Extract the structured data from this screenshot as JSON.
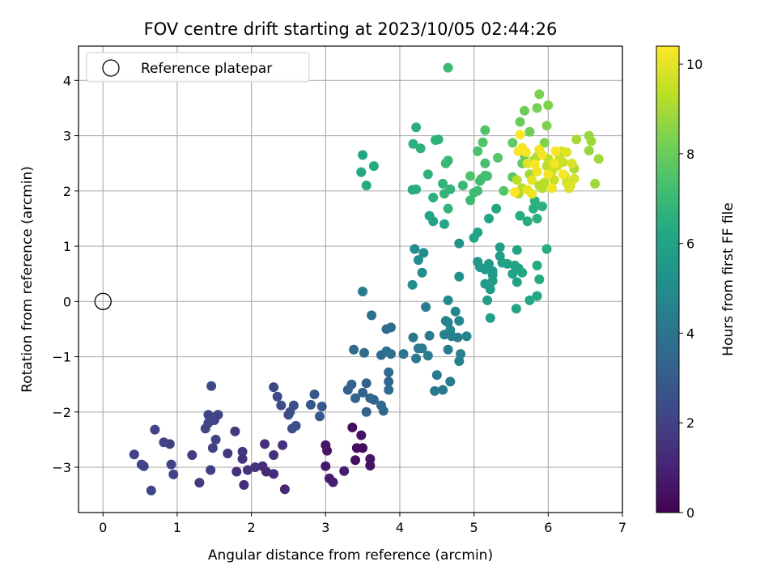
{
  "chart_data": {
    "type": "scatter",
    "title": "FOV centre drift starting at 2023/10/05 02:44:26",
    "xlabel": "Angular distance from reference (arcmin)",
    "ylabel": "Rotation from reference (arcmin)",
    "xlim": [
      -0.33,
      7.0
    ],
    "ylim": [
      -3.82,
      4.62
    ],
    "xticks": [
      0,
      1,
      2,
      3,
      4,
      5,
      6,
      7
    ],
    "yticks": [
      -3,
      -2,
      -1,
      0,
      1,
      2,
      3,
      4
    ],
    "grid": true,
    "legend": {
      "placement": "top-left",
      "entries": [
        "Reference platepar"
      ]
    },
    "reference_point": {
      "x": 0,
      "y": 0,
      "label": "Reference platepar"
    },
    "colorbar": {
      "label": "Hours from first FF file",
      "colormap": "viridis",
      "range": [
        0,
        10.4
      ],
      "ticks": [
        0,
        2,
        4,
        6,
        8,
        10
      ]
    },
    "points": [
      [
        3.36,
        -2.28,
        0.3
      ],
      [
        3.42,
        -2.65,
        0.4
      ],
      [
        3.48,
        -2.42,
        0.5
      ],
      [
        3.5,
        -2.65,
        0.3
      ],
      [
        3.6,
        -2.85,
        0.6
      ],
      [
        3.6,
        -2.97,
        0.5
      ],
      [
        3.4,
        -2.87,
        0.4
      ],
      [
        3.0,
        -2.6,
        0.6
      ],
      [
        3.02,
        -2.7,
        0.6
      ],
      [
        3.0,
        -2.98,
        0.7
      ],
      [
        3.05,
        -3.2,
        0.8
      ],
      [
        3.1,
        -3.27,
        0.9
      ],
      [
        3.25,
        -3.07,
        0.8
      ],
      [
        2.45,
        -3.4,
        1.2
      ],
      [
        2.3,
        -3.12,
        1.3
      ],
      [
        2.2,
        -3.08,
        1.2
      ],
      [
        2.15,
        -2.98,
        1.3
      ],
      [
        2.05,
        -3.0,
        1.5
      ],
      [
        1.95,
        -3.05,
        1.4
      ],
      [
        1.8,
        -3.08,
        1.4
      ],
      [
        1.9,
        -3.32,
        1.3
      ],
      [
        2.18,
        -2.58,
        1.4
      ],
      [
        2.3,
        -2.78,
        1.4
      ],
      [
        2.42,
        -2.6,
        1.5
      ],
      [
        1.88,
        -2.72,
        1.6
      ],
      [
        1.88,
        -2.85,
        1.5
      ],
      [
        1.78,
        -2.35,
        1.7
      ],
      [
        1.68,
        -2.75,
        1.6
      ],
      [
        1.45,
        -3.05,
        1.9
      ],
      [
        1.3,
        -3.28,
        1.8
      ],
      [
        1.2,
        -2.78,
        1.8
      ],
      [
        1.48,
        -2.65,
        2.0
      ],
      [
        1.52,
        -2.5,
        2.0
      ],
      [
        1.38,
        -2.3,
        2.1
      ],
      [
        1.42,
        -2.2,
        2.1
      ],
      [
        1.5,
        -2.15,
        2.0
      ],
      [
        1.55,
        -2.05,
        2.1
      ],
      [
        1.42,
        -2.05,
        2.2
      ],
      [
        1.48,
        -2.1,
        2.1
      ],
      [
        1.46,
        -1.53,
        2.3
      ],
      [
        0.9,
        -2.58,
        1.9
      ],
      [
        0.82,
        -2.55,
        2.0
      ],
      [
        0.7,
        -2.32,
        2.0
      ],
      [
        0.92,
        -2.95,
        2.0
      ],
      [
        0.95,
        -3.13,
        2.1
      ],
      [
        0.42,
        -2.77,
        2.0
      ],
      [
        0.52,
        -2.95,
        2.1
      ],
      [
        0.55,
        -2.98,
        2.1
      ],
      [
        0.65,
        -3.42,
        2.2
      ],
      [
        2.3,
        -1.55,
        2.3
      ],
      [
        2.35,
        -1.72,
        2.3
      ],
      [
        2.4,
        -1.88,
        2.4
      ],
      [
        2.5,
        -2.05,
        2.4
      ],
      [
        2.55,
        -2.3,
        2.5
      ],
      [
        2.6,
        -2.25,
        2.5
      ],
      [
        2.57,
        -1.88,
        2.5
      ],
      [
        2.52,
        -2.0,
        2.5
      ],
      [
        2.8,
        -1.87,
        2.8
      ],
      [
        2.85,
        -1.68,
        2.8
      ],
      [
        2.92,
        -2.08,
        2.9
      ],
      [
        2.95,
        -1.9,
        2.9
      ],
      [
        3.3,
        -1.6,
        3.2
      ],
      [
        3.35,
        -1.5,
        3.2
      ],
      [
        3.4,
        -1.75,
        3.3
      ],
      [
        3.5,
        -1.65,
        3.3
      ],
      [
        3.55,
        -1.48,
        3.3
      ],
      [
        3.55,
        -2.0,
        3.3
      ],
      [
        3.6,
        -1.75,
        3.4
      ],
      [
        3.65,
        -1.78,
        3.4
      ],
      [
        3.75,
        -1.88,
        3.5
      ],
      [
        3.78,
        -1.98,
        3.5
      ],
      [
        3.85,
        -1.6,
        3.6
      ],
      [
        3.85,
        -1.45,
        3.5
      ],
      [
        3.85,
        -1.28,
        3.6
      ],
      [
        3.38,
        -0.87,
        3.6
      ],
      [
        3.52,
        -0.93,
        3.7
      ],
      [
        3.75,
        -0.97,
        3.7
      ],
      [
        3.82,
        -0.5,
        3.6
      ],
      [
        3.88,
        -0.47,
        3.7
      ],
      [
        3.82,
        -0.9,
        3.8
      ],
      [
        3.88,
        -0.95,
        3.8
      ],
      [
        3.62,
        -0.25,
        3.9
      ],
      [
        3.5,
        0.18,
        4.2
      ],
      [
        4.05,
        -0.95,
        4.0
      ],
      [
        4.18,
        -0.65,
        4.2
      ],
      [
        4.25,
        -0.85,
        4.3
      ],
      [
        4.3,
        -0.85,
        4.3
      ],
      [
        4.22,
        -1.03,
        4.2
      ],
      [
        4.38,
        -0.98,
        4.3
      ],
      [
        4.4,
        -0.62,
        4.3
      ],
      [
        4.35,
        -0.1,
        4.3
      ],
      [
        4.5,
        -1.33,
        4.2
      ],
      [
        4.47,
        -1.62,
        4.2
      ],
      [
        4.58,
        -1.6,
        4.2
      ],
      [
        4.68,
        -1.45,
        4.3
      ],
      [
        4.65,
        -0.87,
        4.4
      ],
      [
        4.6,
        -0.6,
        4.5
      ],
      [
        4.7,
        -0.63,
        4.5
      ],
      [
        4.78,
        -0.65,
        4.5
      ],
      [
        4.82,
        -0.95,
        4.6
      ],
      [
        4.9,
        -0.63,
        4.6
      ],
      [
        4.62,
        -0.35,
        4.6
      ],
      [
        4.65,
        -0.38,
        4.6
      ],
      [
        4.68,
        -0.52,
        4.7
      ],
      [
        4.75,
        -0.18,
        4.7
      ],
      [
        4.8,
        -0.35,
        4.7
      ],
      [
        4.8,
        -1.08,
        4.6
      ],
      [
        4.65,
        0.02,
        4.9
      ],
      [
        4.2,
        0.95,
        5.0
      ],
      [
        4.25,
        0.75,
        5.0
      ],
      [
        4.3,
        0.52,
        5.1
      ],
      [
        4.17,
        0.3,
        5.0
      ],
      [
        4.32,
        0.88,
        5.1
      ],
      [
        4.8,
        0.45,
        5.2
      ],
      [
        4.8,
        1.05,
        5.3
      ],
      [
        5.05,
        0.72,
        5.5
      ],
      [
        5.08,
        0.62,
        5.5
      ],
      [
        5.15,
        0.58,
        5.6
      ],
      [
        5.2,
        0.68,
        5.6
      ],
      [
        5.25,
        0.55,
        5.6
      ],
      [
        5.15,
        0.32,
        5.6
      ],
      [
        5.22,
        0.22,
        5.7
      ],
      [
        5.18,
        0.02,
        5.7
      ],
      [
        5.25,
        0.48,
        5.7
      ],
      [
        5.25,
        0.37,
        5.8
      ],
      [
        5.22,
        -0.3,
        5.8
      ],
      [
        5.35,
        0.82,
        5.8
      ],
      [
        5.35,
        0.98,
        5.9
      ],
      [
        5.38,
        0.7,
        5.9
      ],
      [
        5.45,
        0.68,
        6.0
      ],
      [
        5.52,
        0.5,
        6.0
      ],
      [
        5.55,
        0.65,
        6.0
      ],
      [
        5.6,
        0.6,
        6.1
      ],
      [
        5.58,
        0.35,
        6.0
      ],
      [
        5.58,
        0.93,
        6.1
      ],
      [
        5.65,
        0.52,
        6.1
      ],
      [
        5.75,
        0.02,
        6.2
      ],
      [
        5.85,
        0.1,
        6.2
      ],
      [
        5.88,
        0.4,
        6.3
      ],
      [
        5.85,
        0.65,
        6.3
      ],
      [
        5.98,
        0.95,
        6.4
      ],
      [
        5.57,
        -0.13,
        6.1
      ],
      [
        5.0,
        1.15,
        6.0
      ],
      [
        5.05,
        1.25,
        6.0
      ],
      [
        5.2,
        1.5,
        6.1
      ],
      [
        5.3,
        1.68,
        6.2
      ],
      [
        5.62,
        1.55,
        6.4
      ],
      [
        5.72,
        1.45,
        6.4
      ],
      [
        5.8,
        1.68,
        6.5
      ],
      [
        5.85,
        1.5,
        6.6
      ],
      [
        5.92,
        1.72,
        6.6
      ],
      [
        5.82,
        1.82,
        6.6
      ],
      [
        4.6,
        1.4,
        6.1
      ],
      [
        4.45,
        1.45,
        6.0
      ],
      [
        4.4,
        1.55,
        6.0
      ],
      [
        3.48,
        2.34,
        6.2
      ],
      [
        3.5,
        2.65,
        6.2
      ],
      [
        3.55,
        2.1,
        6.3
      ],
      [
        3.65,
        2.45,
        6.4
      ],
      [
        4.17,
        2.02,
        6.5
      ],
      [
        4.22,
        2.03,
        6.5
      ],
      [
        4.18,
        2.85,
        6.6
      ],
      [
        4.22,
        3.15,
        6.6
      ],
      [
        4.28,
        2.77,
        6.6
      ],
      [
        4.38,
        2.3,
        6.7
      ],
      [
        4.45,
        1.88,
        6.6
      ],
      [
        4.48,
        2.92,
        6.7
      ],
      [
        4.52,
        2.93,
        6.7
      ],
      [
        4.58,
        2.13,
        6.8
      ],
      [
        4.6,
        1.95,
        6.8
      ],
      [
        4.65,
        1.68,
        6.8
      ],
      [
        4.68,
        2.03,
        6.8
      ],
      [
        4.62,
        2.5,
        6.9
      ],
      [
        4.65,
        2.55,
        6.9
      ],
      [
        4.65,
        4.23,
        7.0
      ],
      [
        4.85,
        2.1,
        6.9
      ],
      [
        4.95,
        1.83,
        7.0
      ],
      [
        5.0,
        1.97,
        7.1
      ],
      [
        5.05,
        2.0,
        7.2
      ],
      [
        5.08,
        2.18,
        7.1
      ],
      [
        5.1,
        2.22,
        7.2
      ],
      [
        5.15,
        2.28,
        7.3
      ],
      [
        5.15,
        2.5,
        7.3
      ],
      [
        5.18,
        2.27,
        7.3
      ],
      [
        5.05,
        2.72,
        7.4
      ],
      [
        5.12,
        2.88,
        7.5
      ],
      [
        5.15,
        3.1,
        7.5
      ],
      [
        5.32,
        2.6,
        7.6
      ],
      [
        5.4,
        2.0,
        7.6
      ],
      [
        5.52,
        2.25,
        7.7
      ],
      [
        5.52,
        2.87,
        7.8
      ],
      [
        5.65,
        2.5,
        7.9
      ],
      [
        5.68,
        2.65,
        7.9
      ],
      [
        5.62,
        3.25,
        8.0
      ],
      [
        5.68,
        3.45,
        8.1
      ],
      [
        5.75,
        3.07,
        8.1
      ],
      [
        5.85,
        3.5,
        8.2
      ],
      [
        5.88,
        3.75,
        8.3
      ],
      [
        6.0,
        3.55,
        8.4
      ],
      [
        5.98,
        3.18,
        8.4
      ],
      [
        5.95,
        2.87,
        8.4
      ],
      [
        4.95,
        2.27,
        7.5
      ],
      [
        6.55,
        3.0,
        8.8
      ],
      [
        6.58,
        2.9,
        8.9
      ],
      [
        6.55,
        2.73,
        8.8
      ],
      [
        6.63,
        2.13,
        8.9
      ],
      [
        6.68,
        2.58,
        8.9
      ],
      [
        6.38,
        2.93,
        9.0
      ],
      [
        6.35,
        2.4,
        9.1
      ],
      [
        5.75,
        2.3,
        8.9
      ],
      [
        5.8,
        2.55,
        9.1
      ],
      [
        5.85,
        2.62,
        9.2
      ],
      [
        5.88,
        2.1,
        9.2
      ],
      [
        5.92,
        2.05,
        9.3
      ],
      [
        5.95,
        2.15,
        9.3
      ],
      [
        5.98,
        2.45,
        9.4
      ],
      [
        6.0,
        2.58,
        9.4
      ],
      [
        6.05,
        2.35,
        9.5
      ],
      [
        6.08,
        2.2,
        9.5
      ],
      [
        6.12,
        2.45,
        9.6
      ],
      [
        6.15,
        2.63,
        9.6
      ],
      [
        6.18,
        2.72,
        9.7
      ],
      [
        6.2,
        2.52,
        9.6
      ],
      [
        6.22,
        2.28,
        9.7
      ],
      [
        6.25,
        2.15,
        9.7
      ],
      [
        6.28,
        2.05,
        9.8
      ],
      [
        6.3,
        2.1,
        9.8
      ],
      [
        6.32,
        2.5,
        9.8
      ],
      [
        6.25,
        2.7,
        9.9
      ],
      [
        6.35,
        2.22,
        9.8
      ],
      [
        5.65,
        2.05,
        9.3
      ],
      [
        5.6,
        1.95,
        9.2
      ],
      [
        5.58,
        2.2,
        9.3
      ],
      [
        5.72,
        2.5,
        9.9
      ],
      [
        5.78,
        2.2,
        10.0
      ],
      [
        5.72,
        2.02,
        10.0
      ],
      [
        5.78,
        1.95,
        10.1
      ],
      [
        5.85,
        2.35,
        10.1
      ],
      [
        5.88,
        2.75,
        10.1
      ],
      [
        5.92,
        2.65,
        10.2
      ],
      [
        6.0,
        2.3,
        10.2
      ],
      [
        6.05,
        2.05,
        10.2
      ],
      [
        6.08,
        2.5,
        10.2
      ],
      [
        6.1,
        2.72,
        10.3
      ],
      [
        5.7,
        2.7,
        10.3
      ],
      [
        5.65,
        2.78,
        10.3
      ],
      [
        5.6,
        2.72,
        10.3
      ],
      [
        5.62,
        3.02,
        10.4
      ],
      [
        5.55,
        1.98,
        10.4
      ],
      [
        5.82,
        2.48,
        10.3
      ],
      [
        6.2,
        2.3,
        10.3
      ]
    ]
  }
}
